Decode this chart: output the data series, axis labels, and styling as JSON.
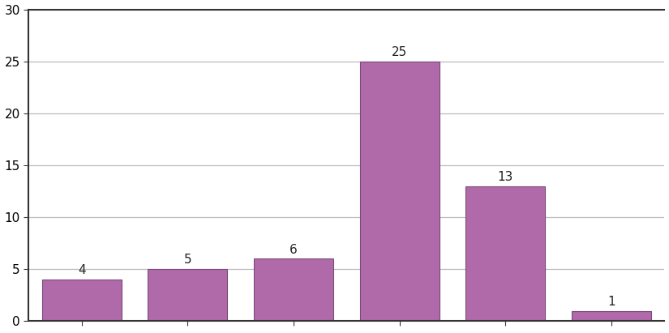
{
  "values": [
    4,
    5,
    6,
    25,
    13,
    1
  ],
  "bar_color": "#b06aaa",
  "bar_edge_color": "#7a4a7a",
  "ylim": [
    0,
    30
  ],
  "yticks": [
    0,
    5,
    10,
    15,
    20,
    25,
    30
  ],
  "grid_color": "#bbbbbb",
  "background_color": "#ffffff",
  "label_fontsize": 11,
  "label_color": "#222222",
  "bar_width": 0.75,
  "figsize": [
    8.25,
    4.11
  ],
  "dpi": 100
}
